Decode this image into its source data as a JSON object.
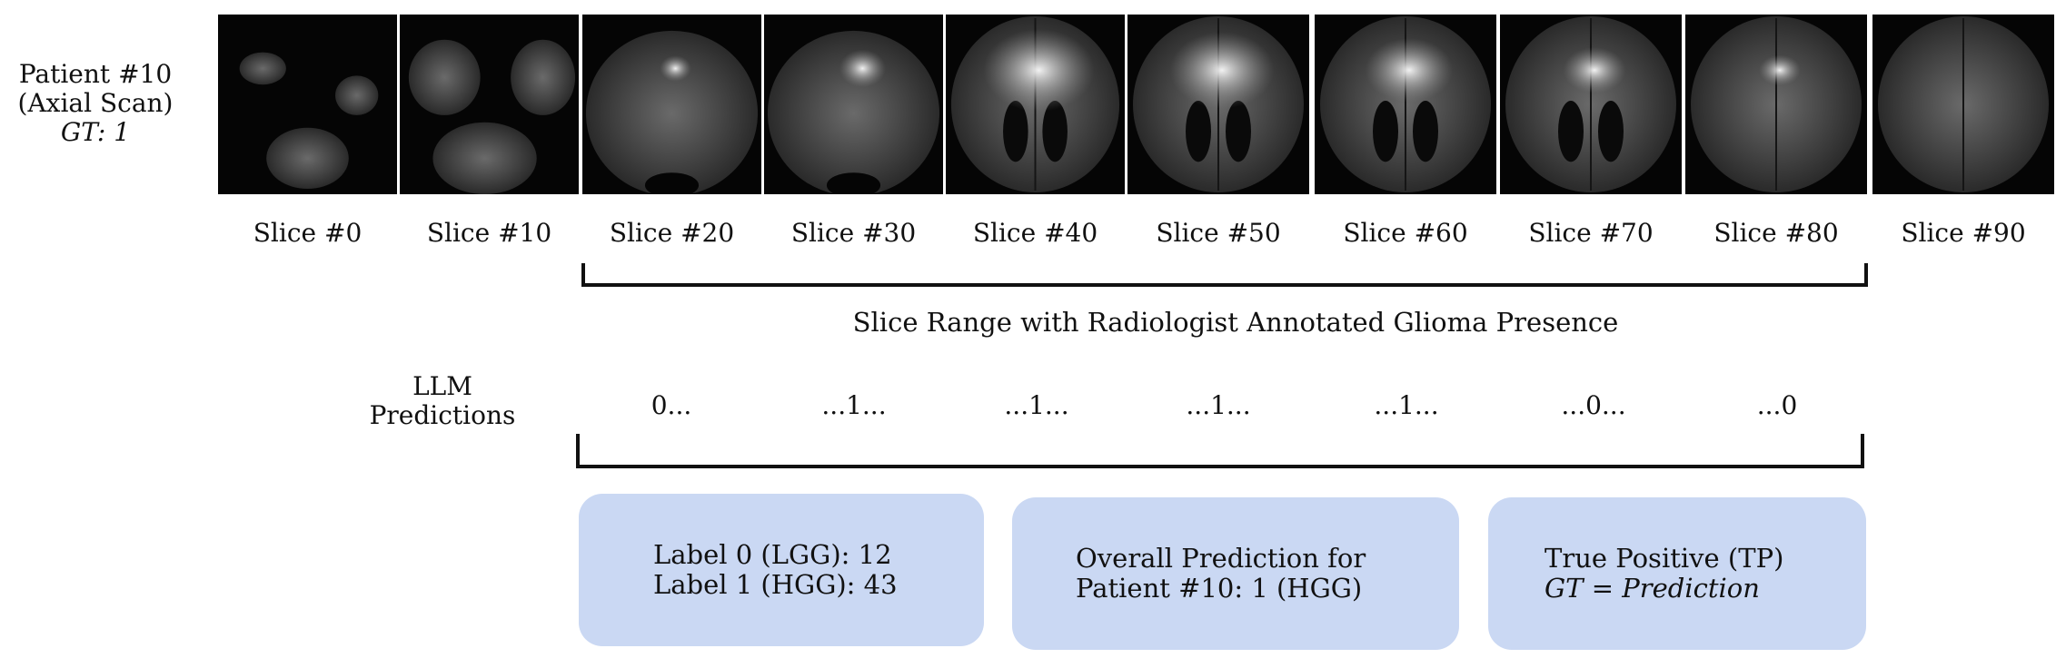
{
  "patient": {
    "name": "Patient #10",
    "scan": "(Axial Scan)",
    "gt": "GT: 1"
  },
  "slices": [
    {
      "label": "Slice #0"
    },
    {
      "label": "Slice #10"
    },
    {
      "label": "Slice #20"
    },
    {
      "label": "Slice #30"
    },
    {
      "label": "Slice #40"
    },
    {
      "label": "Slice #50"
    },
    {
      "label": "Slice #60"
    },
    {
      "label": "Slice #70"
    },
    {
      "label": "Slice #80"
    },
    {
      "label": "Slice #90"
    }
  ],
  "range_label": "Slice Range with Radiologist Annotated Glioma Presence",
  "llm_label": {
    "line1": "LLM",
    "line2": "Predictions"
  },
  "predictions": [
    "0...",
    "...1...",
    "...1...",
    "...1...",
    "...1...",
    "...0...",
    "...0"
  ],
  "boxes": {
    "counts": {
      "line1": "Label 0 (LGG): 12",
      "line2": "Label 1 (HGG): 43"
    },
    "overall": {
      "line1": "Overall Prediction for",
      "line2": "Patient #10: 1 (HGG)"
    },
    "result": {
      "line1": "True Positive (TP)",
      "line2": "GT = Prediction"
    }
  },
  "colors": {
    "box_fill": "#cad8f3",
    "line": "#111111",
    "scan_bg": "#050505"
  }
}
